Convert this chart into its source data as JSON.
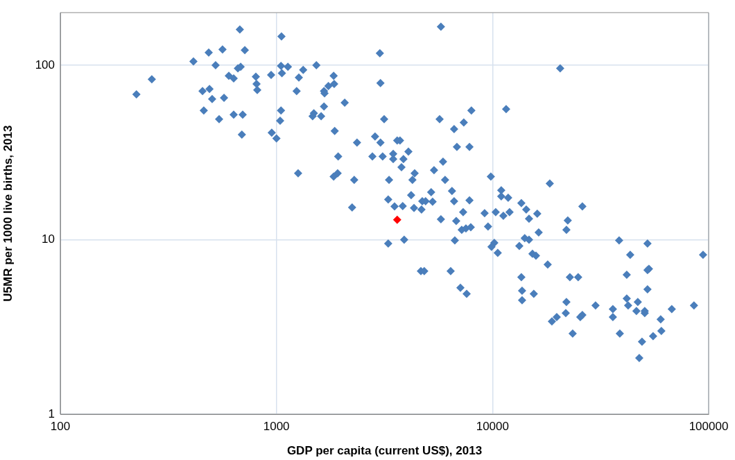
{
  "chart_data": {
    "type": "scatter",
    "xlabel": "GDP per capita (current US$), 2013",
    "ylabel": "U5MR per 1000 live births, 2013",
    "log": "xy",
    "grid": true,
    "marker": "diamond",
    "legend": false,
    "xlim": [
      100,
      100000
    ],
    "xticks": [
      100,
      1000,
      10000,
      100000
    ],
    "ylim": [
      1,
      200
    ],
    "yticks": [
      1,
      10,
      100
    ],
    "series": [
      {
        "color": "#4a7ebb",
        "x": [
          225,
          265,
          413,
          486,
          563,
          677,
          714,
          523,
          663,
          683,
          602,
          634,
          803,
          945,
          809,
          815,
          455,
          490,
          504,
          572,
          461,
          543,
          634,
          698,
          692,
          951,
          1000,
          1050,
          1040,
          1055,
          1050,
          1130,
          1060,
          1330,
          1270,
          1530,
          1240,
          1260,
          1840,
          1850,
          1740,
          1660,
          1670,
          1660,
          1490,
          1470,
          1610,
          2070,
          1860,
          1840,
          1920,
          1930,
          2290,
          2240,
          2360,
          2860,
          3030,
          3010,
          3030,
          3150,
          2780,
          3100,
          3470,
          3470,
          3870,
          4080,
          3620,
          3730,
          3790,
          3320,
          4360,
          4260,
          3290,
          3520,
          3840,
          4200,
          4330,
          4690,
          4730,
          4900,
          5280,
          5200,
          5900,
          5360,
          6030,
          5770,
          5690,
          6490,
          6640,
          7820,
          7310,
          5770,
          6790,
          7200,
          7530,
          7930,
          9190,
          10340,
          11220,
          11990,
          10970,
          10970,
          11810,
          13590,
          14320,
          9530,
          3290,
          3900,
          6690,
          10190,
          9890,
          10570,
          13300,
          14090,
          4660,
          4830,
          6400,
          7100,
          7590,
          13590,
          13700,
          13700,
          6640,
          7360,
          6840,
          7820,
          7980,
          11560,
          9820,
          18400,
          20560,
          16100,
          14750,
          26040,
          22290,
          21970,
          16350,
          14750,
          15300,
          15880,
          18000,
          38520,
          52120,
          43350,
          94200,
          15520,
          22800,
          24900,
          41780,
          52930,
          52120,
          21970,
          21820,
          18820,
          19820,
          23480,
          25470,
          26040,
          29970,
          36050,
          36050,
          38810,
          41780,
          42400,
          47010,
          46320,
          50600,
          50600,
          59980,
          60430,
          55330,
          49160,
          47750,
          67520,
          85500,
          52120
        ],
        "values": [
          68,
          83,
          105,
          118,
          123,
          160,
          122,
          100,
          96,
          98,
          87,
          84,
          86,
          88,
          78,
          72,
          71,
          73,
          64,
          65,
          55,
          49,
          52,
          52,
          40,
          41,
          38,
          55,
          48,
          146,
          99,
          98,
          90,
          94,
          85,
          100,
          71,
          24,
          87,
          78,
          76,
          71,
          69,
          58,
          53,
          51,
          51,
          61,
          42,
          23,
          24,
          30,
          22,
          15.3,
          36,
          39,
          36,
          117,
          79,
          49,
          30,
          30,
          31,
          29,
          29,
          32,
          37,
          37,
          26,
          22,
          24,
          22,
          17,
          15.5,
          15.6,
          18,
          15.2,
          14.9,
          16.6,
          16.6,
          16.5,
          18.7,
          28,
          25,
          22,
          166,
          49,
          19,
          16.6,
          16.8,
          14.4,
          13.1,
          12.8,
          11.4,
          11.6,
          11.8,
          14.2,
          14.4,
          13.7,
          14.4,
          19.2,
          17.7,
          17.4,
          16.2,
          14.9,
          11.9,
          9.5,
          10,
          9.9,
          9.6,
          9.1,
          8.4,
          9.2,
          10.2,
          6.6,
          6.6,
          6.6,
          5.3,
          4.9,
          6.1,
          5.1,
          4.5,
          43,
          47,
          34,
          34,
          55,
          56,
          23,
          21,
          96,
          14.1,
          13.2,
          15.5,
          12.9,
          11.4,
          11,
          10,
          8.3,
          8.1,
          7.2,
          9.9,
          9.5,
          8.2,
          8.2,
          4.9,
          6.1,
          6.1,
          6.3,
          6.8,
          6.7,
          4.4,
          3.8,
          3.4,
          3.6,
          2.9,
          3.6,
          3.7,
          4.2,
          4,
          3.6,
          2.9,
          4.6,
          4.2,
          4.4,
          3.9,
          3.9,
          3.8,
          3.5,
          3,
          2.8,
          2.6,
          2.1,
          4,
          4.2,
          5.2
        ]
      },
      {
        "color": "#ff0000",
        "x": [
          3620
        ],
        "values": [
          13
        ]
      }
    ]
  }
}
